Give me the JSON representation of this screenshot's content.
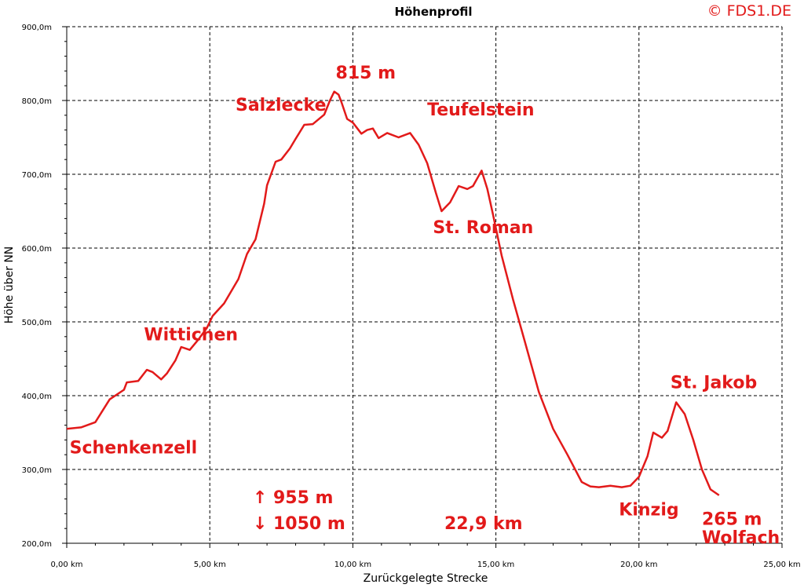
{
  "chart_data": {
    "type": "line",
    "title": "Höhenprofil",
    "copyright": "© FDS1.DE",
    "xlabel": "Zurückgelegte Strecke",
    "ylabel": "Höhe über NN",
    "xlim": [
      0,
      25
    ],
    "ylim": [
      200,
      900
    ],
    "grid": true,
    "x_ticks": [
      {
        "value": 0,
        "label": "0,00 km"
      },
      {
        "value": 5,
        "label": "5,00 km"
      },
      {
        "value": 10,
        "label": "10,00 km"
      },
      {
        "value": 15,
        "label": "15,00 km"
      },
      {
        "value": 20,
        "label": "20,00 km"
      },
      {
        "value": 25,
        "label": "25,00 km"
      }
    ],
    "y_ticks": [
      {
        "value": 200,
        "label": "200,0m"
      },
      {
        "value": 300,
        "label": "300,0m"
      },
      {
        "value": 400,
        "label": "400,0m"
      },
      {
        "value": 500,
        "label": "500,0m"
      },
      {
        "value": 600,
        "label": "600,0m"
      },
      {
        "value": 700,
        "label": "700,0m"
      },
      {
        "value": 800,
        "label": "800,0m"
      },
      {
        "value": 900,
        "label": "900,0m"
      }
    ],
    "series": [
      {
        "color": "#e21a1a",
        "x": [
          0,
          0.5,
          1.0,
          1.5,
          2.0,
          2.1,
          2.5,
          2.8,
          3.0,
          3.3,
          3.5,
          3.8,
          4.0,
          4.3,
          4.6,
          4.9,
          5.1,
          5.5,
          6.0,
          6.3,
          6.6,
          6.9,
          7.0,
          7.3,
          7.5,
          7.8,
          8.0,
          8.3,
          8.6,
          9.0,
          9.2,
          9.35,
          9.5,
          9.6,
          9.8,
          10.0,
          10.3,
          10.5,
          10.7,
          10.9,
          11.2,
          11.6,
          12.0,
          12.3,
          12.6,
          12.9,
          13.1,
          13.4,
          13.7,
          14.0,
          14.2,
          14.5,
          14.7,
          14.9,
          15.2,
          15.6,
          16.0,
          16.5,
          17.0,
          17.5,
          18.0,
          18.3,
          18.6,
          19.0,
          19.4,
          19.7,
          20.0,
          20.3,
          20.5,
          20.8,
          21.0,
          21.3,
          21.6,
          21.9,
          22.2,
          22.5,
          22.8
        ],
        "y": [
          355,
          357,
          364,
          395,
          408,
          418,
          420,
          435,
          432,
          422,
          430,
          448,
          466,
          462,
          476,
          492,
          508,
          525,
          558,
          592,
          612,
          660,
          685,
          717,
          720,
          735,
          748,
          767,
          768,
          781,
          800,
          812,
          808,
          798,
          775,
          770,
          755,
          760,
          762,
          749,
          756,
          750,
          756,
          740,
          715,
          675,
          650,
          662,
          684,
          680,
          684,
          705,
          680,
          645,
          590,
          530,
          475,
          405,
          355,
          320,
          283,
          277,
          276,
          278,
          276,
          278,
          290,
          318,
          350,
          343,
          352,
          391,
          375,
          340,
          300,
          273,
          265
        ]
      }
    ],
    "annotations": [
      {
        "text": "815 m",
        "x": 9.4,
        "y": 830
      },
      {
        "text": "Salzlecke",
        "x": 5.9,
        "y": 786
      },
      {
        "text": "Teufelstein",
        "x": 12.6,
        "y": 780
      },
      {
        "text": "St. Roman",
        "x": 12.8,
        "y": 620
      },
      {
        "text": "Wittichen",
        "x": 2.7,
        "y": 475
      },
      {
        "text": "Schenkenzell",
        "x": 0.1,
        "y": 322
      },
      {
        "text": "St. Jakob",
        "x": 21.1,
        "y": 410
      },
      {
        "text": "Kinzig",
        "x": 19.3,
        "y": 238
      },
      {
        "text": "265 m",
        "x": 22.2,
        "y": 225
      },
      {
        "text": "Wolfach",
        "x": 22.2,
        "y": 200
      },
      {
        "text": "↑  955 m",
        "x": 6.5,
        "y": 254
      },
      {
        "text": "↓ 1050 m",
        "x": 6.5,
        "y": 219
      },
      {
        "text": "22,9 km",
        "x": 13.2,
        "y": 219
      }
    ]
  }
}
